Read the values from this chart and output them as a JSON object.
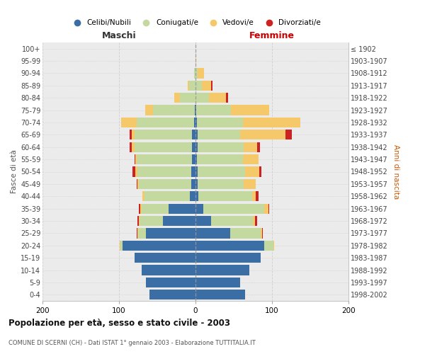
{
  "age_groups": [
    "0-4",
    "5-9",
    "10-14",
    "15-19",
    "20-24",
    "25-29",
    "30-34",
    "35-39",
    "40-44",
    "45-49",
    "50-54",
    "55-59",
    "60-64",
    "65-69",
    "70-74",
    "75-79",
    "80-84",
    "85-89",
    "90-94",
    "95-99",
    "100+"
  ],
  "birth_years": [
    "1998-2002",
    "1993-1997",
    "1988-1992",
    "1983-1987",
    "1978-1982",
    "1973-1977",
    "1968-1972",
    "1963-1967",
    "1958-1962",
    "1953-1957",
    "1948-1952",
    "1943-1947",
    "1938-1942",
    "1933-1937",
    "1928-1932",
    "1923-1927",
    "1918-1922",
    "1913-1917",
    "1908-1912",
    "1903-1907",
    "≤ 1902"
  ],
  "male": {
    "celibi": [
      60,
      65,
      70,
      80,
      95,
      65,
      43,
      35,
      7,
      6,
      6,
      5,
      5,
      5,
      2,
      1,
      0,
      0,
      0,
      0,
      0
    ],
    "coniugati": [
      0,
      0,
      0,
      0,
      3,
      10,
      30,
      35,
      60,
      68,
      70,
      72,
      75,
      75,
      75,
      55,
      20,
      8,
      2,
      0,
      0
    ],
    "vedovi": [
      0,
      0,
      0,
      0,
      1,
      1,
      1,
      2,
      2,
      2,
      3,
      2,
      3,
      3,
      20,
      10,
      8,
      2,
      0,
      0,
      0
    ],
    "divorziati": [
      0,
      0,
      0,
      0,
      0,
      1,
      2,
      2,
      0,
      1,
      3,
      1,
      3,
      3,
      0,
      0,
      0,
      0,
      0,
      0,
      0
    ]
  },
  "female": {
    "nubili": [
      65,
      58,
      70,
      85,
      90,
      45,
      20,
      10,
      4,
      3,
      3,
      2,
      3,
      3,
      2,
      1,
      0,
      0,
      0,
      0,
      0
    ],
    "coniugate": [
      0,
      0,
      0,
      0,
      12,
      40,
      55,
      80,
      70,
      60,
      62,
      60,
      60,
      55,
      60,
      45,
      18,
      8,
      3,
      0,
      0
    ],
    "vedove": [
      0,
      0,
      0,
      0,
      1,
      2,
      3,
      5,
      5,
      16,
      18,
      20,
      18,
      60,
      75,
      50,
      22,
      12,
      8,
      1,
      0
    ],
    "divorziate": [
      0,
      0,
      0,
      0,
      0,
      1,
      3,
      1,
      3,
      0,
      3,
      0,
      3,
      8,
      0,
      0,
      3,
      2,
      0,
      0,
      0
    ]
  },
  "colors": {
    "celibi": "#3A6EA5",
    "coniugati": "#C3D9A0",
    "vedovi": "#F5C96A",
    "divorziati": "#CC2222"
  },
  "title": "Popolazione per età, sesso e stato civile - 2003",
  "subtitle": "COMUNE DI SCERNI (CH) - Dati ISTAT 1° gennaio 2003 - Elaborazione TUTTITALIA.IT",
  "xlabel_left": "Maschi",
  "xlabel_right": "Femmine",
  "ylabel_left": "Fasce di età",
  "ylabel_right": "Anni di nascita",
  "xlim": 200,
  "legend_labels": [
    "Celibi/Nubili",
    "Coniugati/e",
    "Vedovi/e",
    "Divorziati/e"
  ],
  "bg_color": "#ffffff",
  "plot_bg": "#ebebeb"
}
